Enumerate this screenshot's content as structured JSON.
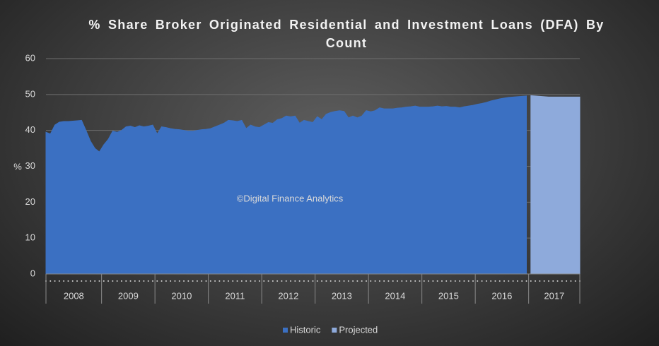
{
  "chart_data": {
    "type": "area",
    "title": "% Share Broker Originated Residential and Investment Loans (DFA) By Count",
    "y_label": "%",
    "watermark": "©Digital Finance Analytics",
    "categories": [
      "2008",
      null,
      null,
      null,
      null,
      null,
      null,
      null,
      null,
      null,
      null,
      null,
      null,
      "2009",
      null,
      null,
      null,
      null,
      null,
      null,
      null,
      null,
      null,
      null,
      null,
      "2010",
      null,
      null,
      null,
      null,
      null,
      null,
      null,
      null,
      null,
      null,
      null,
      "2011",
      null,
      null,
      null,
      null,
      null,
      null,
      null,
      null,
      null,
      null,
      null,
      "2012",
      null,
      null,
      null,
      null,
      null,
      null,
      null,
      null,
      null,
      null,
      null,
      "2013",
      null,
      null,
      null,
      null,
      null,
      null,
      null,
      null,
      null,
      null,
      null,
      "2014",
      null,
      null,
      null,
      null,
      null,
      null,
      null,
      null,
      null,
      null,
      null,
      "2015",
      null,
      null,
      null,
      null,
      null,
      null,
      null,
      null,
      null,
      null,
      null,
      "2016",
      null,
      null,
      null,
      null,
      null,
      null,
      null,
      null,
      null,
      null,
      null,
      "2017",
      null,
      null,
      null,
      null,
      null,
      null,
      null,
      null,
      null,
      null,
      null
    ],
    "series": [
      {
        "name": "Historic",
        "color": "#3b70c2",
        "values": [
          39.5,
          39,
          41.5,
          42.3,
          42.5,
          42.5,
          42.6,
          42.7,
          42.8,
          40,
          37,
          35,
          34,
          36,
          37.5,
          39.8,
          39.5,
          40,
          41,
          41.2,
          40.8,
          41.3,
          41,
          41.2,
          41.5,
          39,
          41,
          40.8,
          40.5,
          40.3,
          40.2,
          40,
          39.8,
          39.8,
          40,
          40.2,
          40.3,
          40.5,
          41,
          41.5,
          42,
          42.8,
          42.7,
          42.5,
          42.8,
          40.5,
          41.5,
          41,
          40.8,
          41.5,
          42.2,
          42,
          43,
          43.3,
          44,
          43.8,
          44,
          42,
          42.8,
          42.5,
          42.2,
          43.8,
          43,
          44.5,
          45,
          45.3,
          45.5,
          45.3,
          43.5,
          44,
          43.5,
          44,
          45.5,
          45.2,
          45.5,
          46.3,
          46,
          46,
          46,
          46.2,
          46.3,
          46.5,
          46.6,
          46.8,
          46.5,
          46.5,
          46.5,
          46.6,
          46.8,
          46.6,
          46.7,
          46.5,
          46.5,
          46.3,
          46.6,
          46.8,
          47,
          47.3,
          47.5,
          47.8,
          48.2,
          48.5,
          48.8,
          49,
          49.2,
          49.3,
          49.4,
          49.5,
          49.6,
          null,
          null,
          null,
          null,
          null,
          null,
          null,
          null,
          null,
          null,
          null,
          null
        ]
      },
      {
        "name": "Projected",
        "color": "#8eaadb",
        "values": [
          null,
          null,
          null,
          null,
          null,
          null,
          null,
          null,
          null,
          null,
          null,
          null,
          null,
          null,
          null,
          null,
          null,
          null,
          null,
          null,
          null,
          null,
          null,
          null,
          null,
          null,
          null,
          null,
          null,
          null,
          null,
          null,
          null,
          null,
          null,
          null,
          null,
          null,
          null,
          null,
          null,
          null,
          null,
          null,
          null,
          null,
          null,
          null,
          null,
          null,
          null,
          null,
          null,
          null,
          null,
          null,
          null,
          null,
          null,
          null,
          null,
          null,
          null,
          null,
          null,
          null,
          null,
          null,
          null,
          null,
          null,
          null,
          null,
          null,
          null,
          null,
          null,
          null,
          null,
          null,
          null,
          null,
          null,
          null,
          null,
          null,
          null,
          null,
          null,
          null,
          null,
          null,
          null,
          null,
          null,
          null,
          null,
          null,
          null,
          null,
          null,
          null,
          null,
          null,
          null,
          null,
          null,
          null,
          null,
          49.7,
          49.6,
          49.5,
          49.4,
          49.3,
          49.3,
          49.3,
          49.3,
          49.3,
          49.3,
          49.3,
          49.3
        ]
      }
    ],
    "ylim": [
      0,
      60
    ],
    "yticks": [
      0,
      10,
      20,
      30,
      40,
      50,
      60
    ],
    "grid": true,
    "legend": "bottom"
  }
}
